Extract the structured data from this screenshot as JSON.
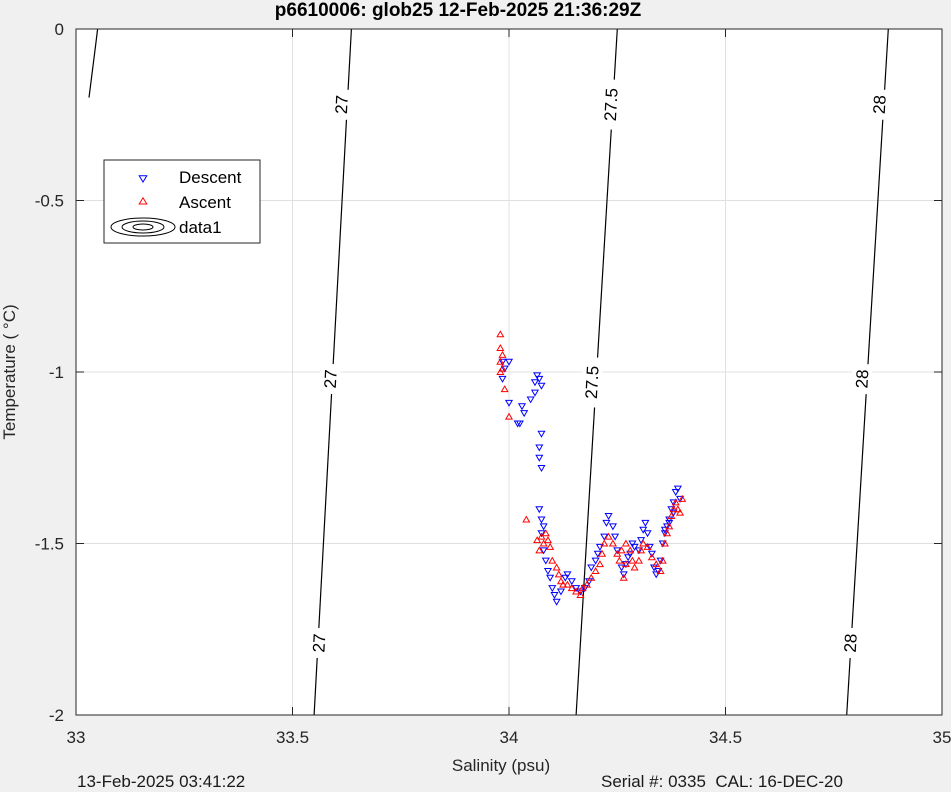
{
  "chart_data": {
    "type": "scatter",
    "title": "p6610006: glob25 12-Feb-2025 21:36:29Z",
    "xlabel": "Salinity (psu)",
    "ylabel": "Temperature (   °C)",
    "xlim": [
      33,
      35
    ],
    "ylim": [
      -2,
      0
    ],
    "xticks": [
      "33",
      "33.5",
      "34",
      "34.5",
      "35"
    ],
    "yticks": [
      "0",
      "-0.5",
      "-1",
      "-1.5",
      "-2"
    ],
    "grid": true,
    "legend_position": "top-left",
    "legend": [
      "Descent",
      "Ascent",
      "data1"
    ],
    "colors": {
      "descent": "#0000ff",
      "ascent": "#ff0000",
      "contour": "#000000",
      "grid": "#e0e0e0"
    },
    "contours": [
      {
        "level": "27",
        "points": [
          [
            33.03,
            -0.2
          ],
          [
            33.045,
            -0.05
          ],
          [
            33.05,
            0.0
          ]
        ]
      },
      {
        "level": "27",
        "points": [
          [
            33.55,
            -2.0
          ],
          [
            33.636,
            0.0
          ]
        ]
      },
      {
        "level": "27.5",
        "points": [
          [
            34.155,
            -2.0
          ],
          [
            34.25,
            0.0
          ]
        ]
      },
      {
        "level": "28",
        "points": [
          [
            34.78,
            -2.0
          ],
          [
            34.876,
            0.0
          ]
        ]
      }
    ],
    "contour_labels": [
      {
        "text": "27",
        "s": 33.613,
        "t": -0.22
      },
      {
        "text": "27",
        "s": 33.587,
        "t": -1.02
      },
      {
        "text": "27",
        "s": 33.561,
        "t": -1.79
      },
      {
        "text": "27.5",
        "s": 34.235,
        "t": -0.22
      },
      {
        "text": "27.5",
        "s": 34.191,
        "t": -1.03
      },
      {
        "text": "28",
        "s": 34.855,
        "t": -0.22
      },
      {
        "text": "28",
        "s": 34.815,
        "t": -1.02
      },
      {
        "text": "28",
        "s": 34.788,
        "t": -1.79
      }
    ],
    "series": [
      {
        "name": "Descent",
        "points": [
          [
            33.985,
            -0.97
          ],
          [
            33.99,
            -0.99
          ],
          [
            33.985,
            -1.02
          ],
          [
            34.0,
            -0.97
          ],
          [
            34.0,
            -1.09
          ],
          [
            34.02,
            -1.15
          ],
          [
            34.025,
            -1.15
          ],
          [
            34.03,
            -1.1
          ],
          [
            34.035,
            -1.12
          ],
          [
            34.05,
            -1.08
          ],
          [
            34.06,
            -1.03
          ],
          [
            34.065,
            -1.01
          ],
          [
            34.07,
            -1.02
          ],
          [
            34.075,
            -1.04
          ],
          [
            34.06,
            -1.06
          ],
          [
            34.075,
            -1.18
          ],
          [
            34.07,
            -1.22
          ],
          [
            34.07,
            -1.25
          ],
          [
            34.075,
            -1.28
          ],
          [
            34.07,
            -1.4
          ],
          [
            34.075,
            -1.43
          ],
          [
            34.08,
            -1.45
          ],
          [
            34.075,
            -1.47
          ],
          [
            34.08,
            -1.52
          ],
          [
            34.085,
            -1.55
          ],
          [
            34.09,
            -1.58
          ],
          [
            34.095,
            -1.6
          ],
          [
            34.1,
            -1.63
          ],
          [
            34.105,
            -1.65
          ],
          [
            34.11,
            -1.67
          ],
          [
            34.12,
            -1.64
          ],
          [
            34.13,
            -1.6
          ],
          [
            34.135,
            -1.59
          ],
          [
            34.145,
            -1.61
          ],
          [
            34.155,
            -1.63
          ],
          [
            34.165,
            -1.64
          ],
          [
            34.175,
            -1.63
          ],
          [
            34.185,
            -1.61
          ],
          [
            34.19,
            -1.57
          ],
          [
            34.2,
            -1.55
          ],
          [
            34.205,
            -1.53
          ],
          [
            34.21,
            -1.51
          ],
          [
            34.22,
            -1.48
          ],
          [
            34.225,
            -1.44
          ],
          [
            34.23,
            -1.42
          ],
          [
            34.24,
            -1.45
          ],
          [
            34.245,
            -1.48
          ],
          [
            34.25,
            -1.52
          ],
          [
            34.26,
            -1.57
          ],
          [
            34.265,
            -1.59
          ],
          [
            34.27,
            -1.56
          ],
          [
            34.275,
            -1.54
          ],
          [
            34.28,
            -1.53
          ],
          [
            34.285,
            -1.5
          ],
          [
            34.29,
            -1.51
          ],
          [
            34.3,
            -1.52
          ],
          [
            34.305,
            -1.49
          ],
          [
            34.31,
            -1.46
          ],
          [
            34.315,
            -1.44
          ],
          [
            34.32,
            -1.47
          ],
          [
            34.325,
            -1.51
          ],
          [
            34.33,
            -1.53
          ],
          [
            34.335,
            -1.57
          ],
          [
            34.34,
            -1.59
          ],
          [
            34.345,
            -1.58
          ],
          [
            34.35,
            -1.55
          ],
          [
            34.355,
            -1.5
          ],
          [
            34.36,
            -1.47
          ],
          [
            34.365,
            -1.45
          ],
          [
            34.37,
            -1.43
          ],
          [
            34.375,
            -1.4
          ],
          [
            34.38,
            -1.38
          ],
          [
            34.385,
            -1.35
          ],
          [
            34.39,
            -1.34
          ],
          [
            34.395,
            -1.37
          ],
          [
            34.38,
            -1.41
          ],
          [
            34.37,
            -1.44
          ],
          [
            34.36,
            -1.46
          ]
        ]
      },
      {
        "name": "Ascent",
        "points": [
          [
            33.98,
            -0.89
          ],
          [
            33.98,
            -0.93
          ],
          [
            33.985,
            -0.95
          ],
          [
            33.98,
            -0.97
          ],
          [
            33.985,
            -0.99
          ],
          [
            33.98,
            -1.0
          ],
          [
            33.99,
            -1.05
          ],
          [
            34.0,
            -1.13
          ],
          [
            34.04,
            -1.43
          ],
          [
            34.065,
            -1.49
          ],
          [
            34.07,
            -1.52
          ],
          [
            34.075,
            -1.48
          ],
          [
            34.08,
            -1.5
          ],
          [
            34.085,
            -1.47
          ],
          [
            34.09,
            -1.49
          ],
          [
            34.095,
            -1.51
          ],
          [
            34.1,
            -1.55
          ],
          [
            34.11,
            -1.57
          ],
          [
            34.115,
            -1.59
          ],
          [
            34.12,
            -1.61
          ],
          [
            34.125,
            -1.62
          ],
          [
            34.135,
            -1.62
          ],
          [
            34.145,
            -1.63
          ],
          [
            34.155,
            -1.64
          ],
          [
            34.165,
            -1.65
          ],
          [
            34.17,
            -1.63
          ],
          [
            34.18,
            -1.62
          ],
          [
            34.19,
            -1.6
          ],
          [
            34.2,
            -1.58
          ],
          [
            34.21,
            -1.56
          ],
          [
            34.215,
            -1.53
          ],
          [
            34.22,
            -1.5
          ],
          [
            34.23,
            -1.48
          ],
          [
            34.24,
            -1.5
          ],
          [
            34.25,
            -1.53
          ],
          [
            34.255,
            -1.55
          ],
          [
            34.26,
            -1.52
          ],
          [
            34.27,
            -1.5
          ],
          [
            34.28,
            -1.52
          ],
          [
            34.285,
            -1.55
          ],
          [
            34.29,
            -1.57
          ],
          [
            34.3,
            -1.55
          ],
          [
            34.305,
            -1.52
          ],
          [
            34.31,
            -1.5
          ],
          [
            34.32,
            -1.51
          ],
          [
            34.33,
            -1.54
          ],
          [
            34.34,
            -1.56
          ],
          [
            34.35,
            -1.58
          ],
          [
            34.355,
            -1.55
          ],
          [
            34.36,
            -1.5
          ],
          [
            34.365,
            -1.47
          ],
          [
            34.37,
            -1.45
          ],
          [
            34.375,
            -1.42
          ],
          [
            34.38,
            -1.4
          ],
          [
            34.385,
            -1.38
          ],
          [
            34.39,
            -1.4
          ],
          [
            34.395,
            -1.41
          ],
          [
            34.4,
            -1.37
          ],
          [
            34.27,
            -1.56
          ],
          [
            34.265,
            -1.6
          ]
        ]
      }
    ]
  },
  "footer": {
    "left": "13-Feb-2025 03:41:22",
    "right": "Serial #: 0335  CAL: 16-DEC-20"
  }
}
